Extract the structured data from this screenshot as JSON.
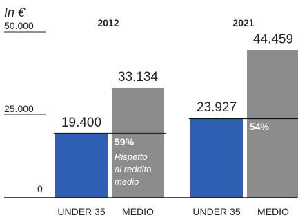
{
  "chart_data": {
    "type": "bar",
    "unit_label": "In €",
    "y_ticks": [
      "50.000",
      "25.000",
      "0"
    ],
    "ylim": [
      0,
      50000
    ],
    "groups": [
      {
        "year": "2012",
        "bars": [
          {
            "category": "UNDER 35",
            "value": 19400,
            "label": "19.400",
            "color": "#2f5fb3"
          },
          {
            "category": "MEDIO",
            "value": 33134,
            "label": "33.134",
            "color": "#8c8c8c"
          }
        ],
        "share": "59%",
        "share_note": [
          "Rispetto",
          "al reddito",
          "medio"
        ]
      },
      {
        "year": "2021",
        "bars": [
          {
            "category": "UNDER 35",
            "value": 23927,
            "label": "23.927",
            "color": "#2f5fb3"
          },
          {
            "category": "MEDIO",
            "value": 44459,
            "label": "44.459",
            "color": "#8c8c8c"
          }
        ],
        "share": "54%",
        "share_note": []
      }
    ]
  }
}
